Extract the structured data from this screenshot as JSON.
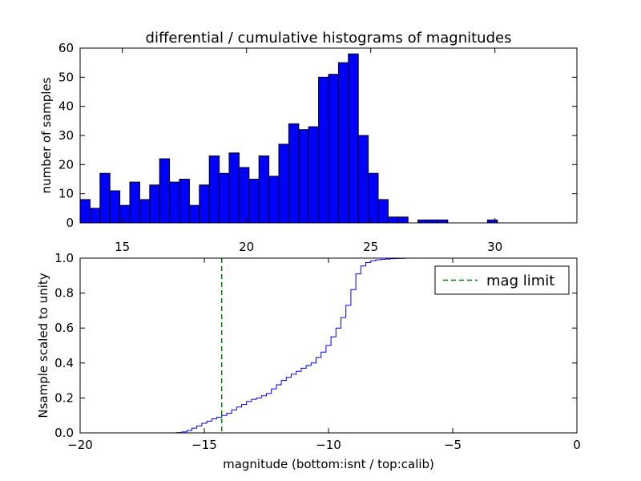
{
  "chart_data": [
    {
      "type": "bar",
      "title": "differential / cumulative histograms of magnitudes",
      "xlabel": "",
      "ylabel": "number of samples",
      "xlim": [
        13.3,
        33.3
      ],
      "ylim": [
        0,
        60
      ],
      "bin_start": 13.3,
      "bin_width": 0.4,
      "values": [
        8,
        5,
        17,
        11,
        6,
        14,
        8,
        13,
        22,
        14,
        15,
        6,
        13,
        23,
        17,
        24,
        19,
        15,
        23,
        16,
        27,
        34,
        32,
        33,
        50,
        51,
        55,
        58,
        30,
        17,
        8,
        2,
        2,
        0,
        1,
        1,
        1,
        0,
        0,
        0,
        0,
        1,
        0,
        0,
        0,
        0,
        0,
        0,
        0,
        0
      ],
      "xticks": [
        "15",
        "20",
        "25",
        "30"
      ],
      "xtick_values": [
        15,
        20,
        25,
        30
      ],
      "yticks": [
        "0",
        "10",
        "20",
        "30",
        "40",
        "50",
        "60"
      ],
      "ytick_values": [
        0,
        10,
        20,
        30,
        40,
        50,
        60
      ],
      "bar_color": "#0000ff",
      "edge_color": "#000000"
    },
    {
      "type": "line",
      "xlabel": "magnitude (bottom:isnt / top:calib)",
      "ylabel": "Nsample scaled to unity",
      "xlim": [
        -20,
        0
      ],
      "ylim": [
        0,
        1
      ],
      "step_start": -16.1,
      "step_width": 0.2,
      "step_values": [
        0.002,
        0.006,
        0.014,
        0.027,
        0.04,
        0.055,
        0.067,
        0.081,
        0.09,
        0.1,
        0.112,
        0.132,
        0.148,
        0.162,
        0.18,
        0.192,
        0.2,
        0.212,
        0.226,
        0.252,
        0.275,
        0.3,
        0.318,
        0.336,
        0.352,
        0.37,
        0.386,
        0.4,
        0.432,
        0.462,
        0.5,
        0.55,
        0.6,
        0.66,
        0.73,
        0.82,
        0.91,
        0.955,
        0.975,
        0.985,
        0.99,
        0.993,
        0.995,
        0.997,
        0.998,
        0.999,
        1.0
      ],
      "series_color": "#0000ff",
      "mag_limit": -14.3,
      "mag_limit_color": "#008000",
      "legend": [
        {
          "label": "mag limit",
          "style": "dashed",
          "color": "#008000"
        }
      ],
      "legend_position": "top-right",
      "xticks": [
        "−20",
        "−15",
        "−10",
        "−5",
        "0"
      ],
      "xtick_values": [
        -20,
        -15,
        -10,
        -5,
        0
      ],
      "yticks": [
        "0.0",
        "0.2",
        "0.4",
        "0.6",
        "0.8",
        "1.0"
      ],
      "ytick_values": [
        0,
        0.2,
        0.4,
        0.6,
        0.8,
        1.0
      ]
    }
  ]
}
